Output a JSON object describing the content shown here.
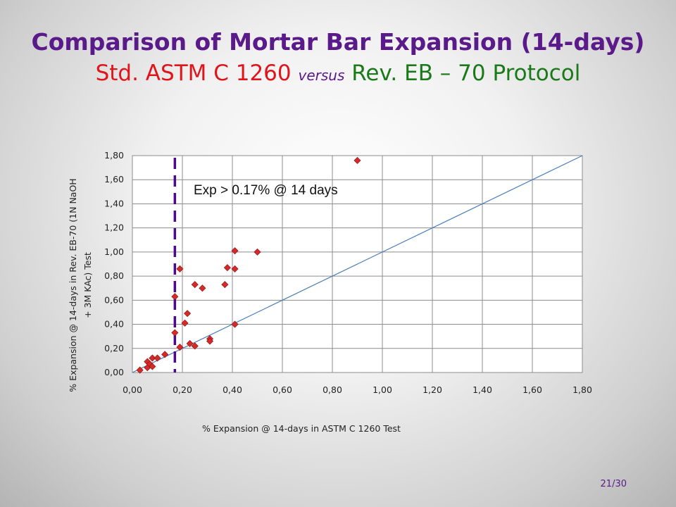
{
  "title": {
    "line1": "Comparison of Mortar Bar Expansion (14-days)",
    "std": "Std. ASTM C 1260",
    "versus": "versus",
    "rev": "Rev. EB – 70 Protocol"
  },
  "page_number": "21/30",
  "chart_data": {
    "type": "scatter",
    "xlabel": "% Expansion @ 14-days in ASTM C 1260 Test",
    "ylabel_lines": [
      "% Expansion @ 14-days in Rev. EB-70 (1N NaOH",
      "+ 3M KAc) Test"
    ],
    "xlim": [
      0,
      1.8
    ],
    "ylim": [
      0,
      1.8
    ],
    "x_ticks": [
      "0,00",
      "0,20",
      "0,40",
      "0,60",
      "0,80",
      "1,00",
      "1,20",
      "1,40",
      "1,60",
      "1,80"
    ],
    "y_ticks": [
      "0,00",
      "0,20",
      "0,40",
      "0,60",
      "0,80",
      "1,00",
      "1,20",
      "1,40",
      "1,60",
      "1,80"
    ],
    "grid": true,
    "reference_line": {
      "from": [
        0,
        0
      ],
      "to": [
        1.8,
        1.8
      ],
      "color": "#4a7ebb"
    },
    "threshold_line": {
      "x": 0.17,
      "color": "#4b0a8c",
      "style": "dashed"
    },
    "annotation": "Exp > 0.17% @ 14 days",
    "marker_color": "#d42a2a",
    "points": [
      [
        0.03,
        0.02
      ],
      [
        0.06,
        0.04
      ],
      [
        0.06,
        0.09
      ],
      [
        0.07,
        0.07
      ],
      [
        0.08,
        0.05
      ],
      [
        0.08,
        0.12
      ],
      [
        0.1,
        0.12
      ],
      [
        0.13,
        0.15
      ],
      [
        0.17,
        0.33
      ],
      [
        0.17,
        0.63
      ],
      [
        0.19,
        0.21
      ],
      [
        0.19,
        0.86
      ],
      [
        0.21,
        0.41
      ],
      [
        0.22,
        0.49
      ],
      [
        0.23,
        0.24
      ],
      [
        0.25,
        0.22
      ],
      [
        0.25,
        0.73
      ],
      [
        0.28,
        0.7
      ],
      [
        0.31,
        0.28
      ],
      [
        0.31,
        0.26
      ],
      [
        0.37,
        0.73
      ],
      [
        0.38,
        0.87
      ],
      [
        0.41,
        0.4
      ],
      [
        0.41,
        1.01
      ],
      [
        0.41,
        0.86
      ],
      [
        0.5,
        1.0
      ],
      [
        0.9,
        1.76
      ]
    ]
  }
}
